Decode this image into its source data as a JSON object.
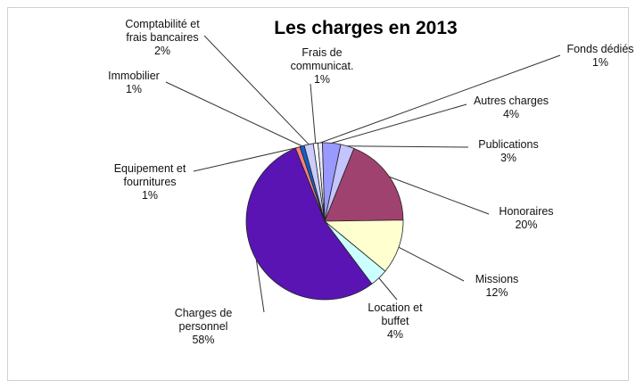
{
  "chart_data": {
    "type": "pie",
    "title": "Les charges en 2013",
    "categories": [
      "Fonds dédiés",
      "Autres charges",
      "Publications",
      "Honoraires",
      "Missions",
      "Location et buffet",
      "Charges de personnel",
      "Equipement et fournitures",
      "Immobilier",
      "Comptabilité et frais bancaires",
      "Frais de communicat."
    ],
    "values": [
      1,
      4,
      3,
      20,
      12,
      4,
      58,
      1,
      1,
      2,
      1
    ],
    "value_labels": [
      "1%",
      "4%",
      "3%",
      "20%",
      "12%",
      "4%",
      "58%",
      "1%",
      "1%",
      "2%",
      "1%"
    ],
    "colors": [
      "#eeeeff",
      "#9999ff",
      "#c4c4ff",
      "#a0426f",
      "#ffffd0",
      "#ccffff",
      "#5a14b4",
      "#ff8080",
      "#1060c8",
      "#ccccff",
      "#ffffff"
    ]
  }
}
